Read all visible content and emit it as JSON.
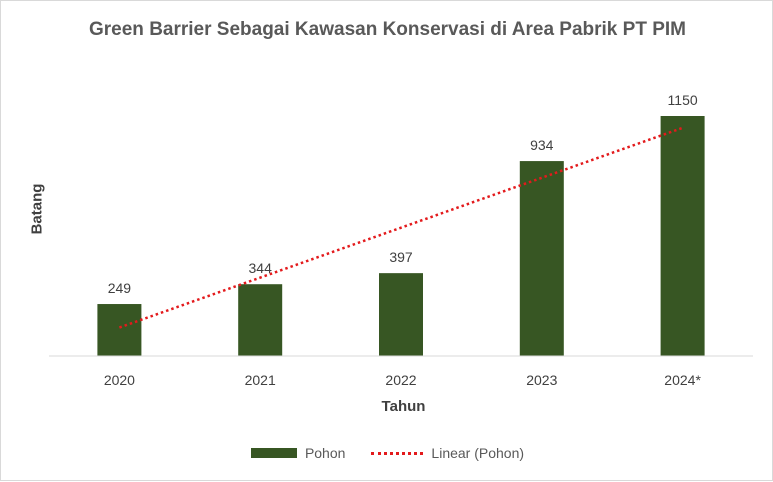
{
  "chart_data": {
    "type": "bar",
    "title": "Green Barrier Sebagai Kawasan Konservasi di Area Pabrik PT PIM",
    "xlabel": "Tahun",
    "ylabel": "Batang",
    "categories": [
      "2020",
      "2021",
      "2022",
      "2023",
      "2024*"
    ],
    "series": [
      {
        "name": "Pohon",
        "values": [
          249,
          344,
          397,
          934,
          1150
        ],
        "color": "#375623"
      }
    ],
    "data_labels": [
      "249",
      "344",
      "397",
      "934",
      "1150"
    ],
    "trendline": {
      "name": "Linear (Pohon)",
      "type": "linear",
      "color": "#e31a1c",
      "style": "dotted"
    },
    "ylim": [
      0,
      1150
    ],
    "grid": false,
    "legend_position": "bottom"
  }
}
